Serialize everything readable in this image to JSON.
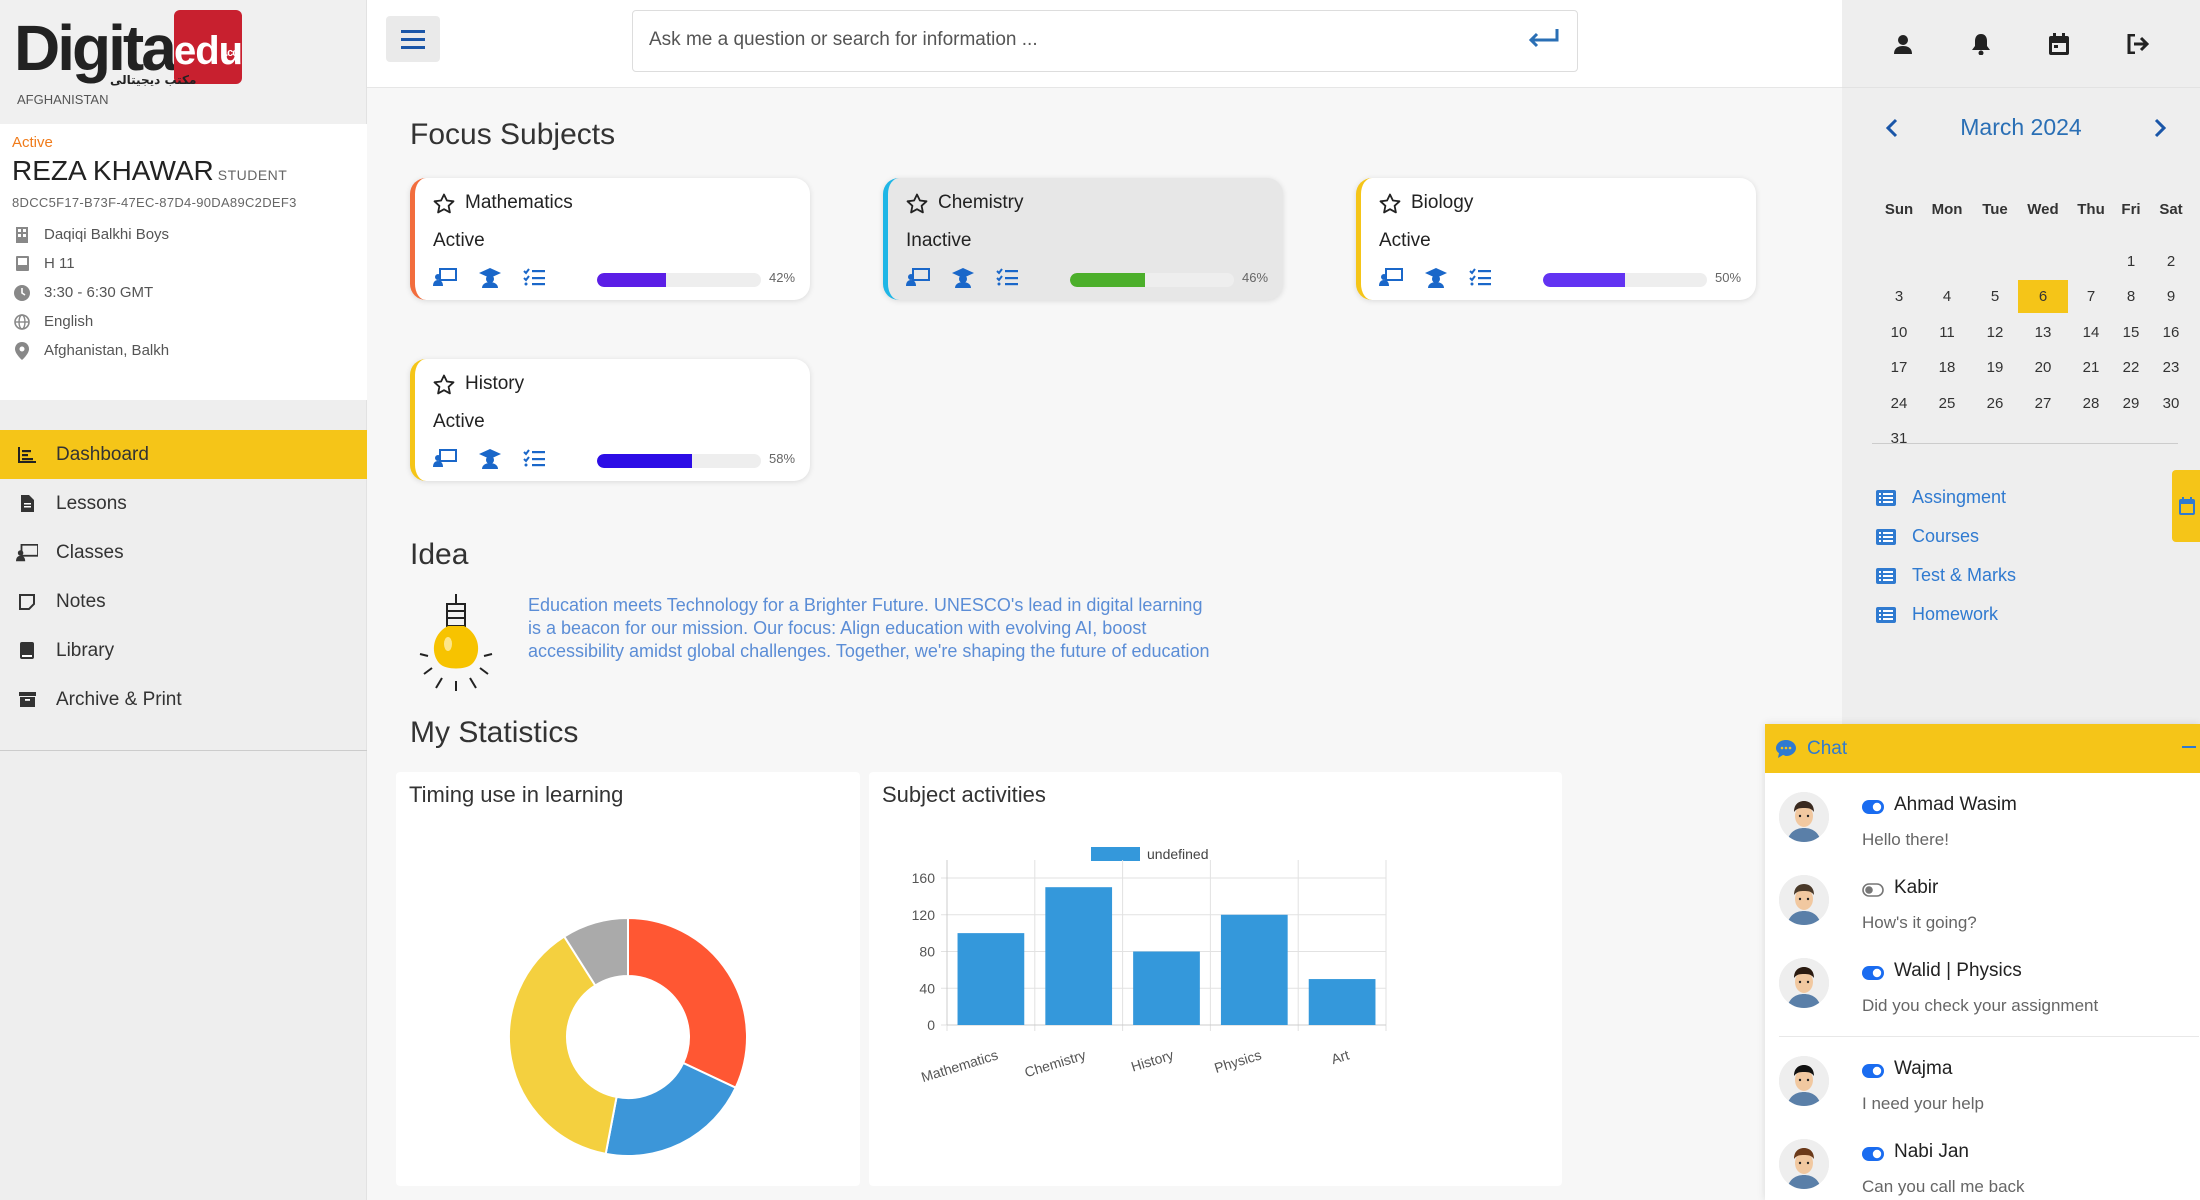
{
  "brand": {
    "word": "Digital",
    "edu": "edu",
    "co": ".co",
    "arabic": "مکتب دیجیتالی",
    "country": "AFGHANISTAN"
  },
  "profile": {
    "status": "Active",
    "name": "REZA KHAWAR",
    "role": "STUDENT",
    "id": "8DCC5F17-B73F-47EC-87D4-90DA89C2DEF3",
    "school": "Daqiqi Balkhi Boys",
    "class": "H 11",
    "time": "3:30 - 6:30 GMT",
    "language": "English",
    "location": "Afghanistan, Balkh"
  },
  "nav": [
    {
      "label": "Dashboard",
      "icon": "chart-icon",
      "active": true
    },
    {
      "label": "Lessons",
      "icon": "document-icon"
    },
    {
      "label": "Classes",
      "icon": "teacher-board-icon"
    },
    {
      "label": "Notes",
      "icon": "note-icon"
    },
    {
      "label": "Library",
      "icon": "book-icon"
    },
    {
      "label": "Archive & Print",
      "icon": "archive-icon"
    }
  ],
  "search": {
    "placeholder": "Ask me a question or search for information ..."
  },
  "sections": {
    "focus": "Focus Subjects",
    "idea": "Idea",
    "stats": "My Statistics"
  },
  "subjects": [
    {
      "name": "Mathematics",
      "status": "Active",
      "progress": 42,
      "progress_label": "42%",
      "accent": "#f26d3d",
      "bar": "#5b1ee6"
    },
    {
      "name": "Chemistry",
      "status": "Inactive",
      "progress": 46,
      "progress_label": "46%",
      "accent": "#1fb6e6",
      "bar": "#4caf2b"
    },
    {
      "name": "Biology",
      "status": "Active",
      "progress": 50,
      "progress_label": "50%",
      "accent": "#f5c518",
      "bar": "#6233f2"
    },
    {
      "name": "History",
      "status": "Active",
      "progress": 58,
      "progress_label": "58%",
      "accent": "#f5c518",
      "bar": "#2c0de6"
    }
  ],
  "idea": {
    "text": "Education meets Technology for a Brighter Future. UNESCO's lead in digital learning is a beacon for our mission. Our focus: Align education with evolving AI, boost accessibility amidst global challenges. Together, we're shaping the future of education"
  },
  "chart_data": [
    {
      "type": "pie",
      "title": "Timing use in learning",
      "variant": "doughnut",
      "values": [
        32,
        21,
        38,
        9
      ],
      "colors": [
        "#ff5733",
        "#3c96d9",
        "#f4d03f",
        "#aaaaaa"
      ]
    },
    {
      "type": "bar",
      "title": "Subject activities",
      "legend": "undefined",
      "legend_position": "top",
      "categories": [
        "Mathematics",
        "Chemistry",
        "History",
        "Physics",
        "Art"
      ],
      "values": [
        100,
        150,
        80,
        120,
        50
      ],
      "ylim": [
        0,
        160
      ],
      "yticks": [
        0,
        40,
        80,
        120,
        160
      ],
      "grid": true,
      "color": "#3498db"
    }
  ],
  "topbar_icons": [
    "user-icon",
    "bell-icon",
    "calendar-icon",
    "logout-icon"
  ],
  "calendar": {
    "month": "March 2024",
    "days": [
      "Sun",
      "Mon",
      "Tue",
      "Wed",
      "Thu",
      "Fri",
      "Sat"
    ],
    "weeks": [
      [
        "",
        "",
        "",
        "",
        "",
        "1",
        "2"
      ],
      [
        "3",
        "4",
        "5",
        "6",
        "7",
        "8",
        "9"
      ],
      [
        "10",
        "11",
        "12",
        "13",
        "14",
        "15",
        "16"
      ],
      [
        "17",
        "18",
        "19",
        "20",
        "21",
        "22",
        "23"
      ],
      [
        "24",
        "25",
        "26",
        "27",
        "28",
        "29",
        "30"
      ],
      [
        "31",
        "",
        "",
        "",
        "",
        "",
        ""
      ]
    ],
    "today": "6"
  },
  "links": [
    "Assingment",
    "Courses",
    "Test & Marks",
    "Homework"
  ],
  "chat": {
    "title": "Chat",
    "messages": [
      {
        "name": "Ahmad Wasim",
        "text": "Hello there!",
        "online": true
      },
      {
        "name": "Kabir",
        "text": "How's it going?",
        "online": false
      },
      {
        "name": "Walid | Physics",
        "text": "Did you check your assignment",
        "online": true
      },
      {
        "name": "Wajma",
        "text": "I need your help",
        "online": true
      },
      {
        "name": "Nabi Jan",
        "text": "Can you call me back",
        "online": true
      }
    ]
  }
}
